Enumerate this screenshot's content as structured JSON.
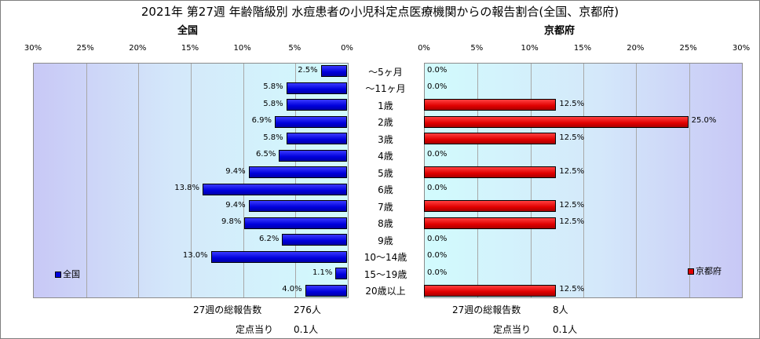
{
  "title": "2021年 第27週 年齢階級別 水痘患者の小児科定点医療機関からの報告割合(全国、京都府)",
  "categories": [
    "～5ヶ月",
    "～11ヶ月",
    "1歳",
    "2歳",
    "3歳",
    "4歳",
    "5歳",
    "6歳",
    "7歳",
    "8歳",
    "9歳",
    "10～14歳",
    "15～19歳",
    "20歳以上"
  ],
  "colors": {
    "national": "#0000dc",
    "kyoto": "#e00000"
  },
  "chart_data": [
    {
      "type": "bar",
      "orientation": "horizontal",
      "direction": "right-to-left",
      "title": "全国",
      "categories": [
        "～5ヶ月",
        "～11ヶ月",
        "1歳",
        "2歳",
        "3歳",
        "4歳",
        "5歳",
        "6歳",
        "7歳",
        "8歳",
        "9歳",
        "10～14歳",
        "15～19歳",
        "20歳以上"
      ],
      "series": [
        {
          "name": "全国",
          "values": [
            2.5,
            5.8,
            5.8,
            6.9,
            5.8,
            6.5,
            9.4,
            13.8,
            9.4,
            9.8,
            6.2,
            13.0,
            1.1,
            4.0
          ]
        }
      ],
      "value_labels": [
        "2.5%",
        "5.8%",
        "5.8%",
        "6.9%",
        "5.8%",
        "6.5%",
        "9.4%",
        "13.8%",
        "9.4%",
        "9.8%",
        "6.2%",
        "13.0%",
        "1.1%",
        "4.0%"
      ],
      "xlim": [
        0,
        30
      ],
      "ticks": [
        "30%",
        "25%",
        "20%",
        "15%",
        "10%",
        "5%",
        "0%"
      ],
      "tick_values": [
        30,
        25,
        20,
        15,
        10,
        5,
        0
      ],
      "grid": true,
      "legend_position": "bottom-left"
    },
    {
      "type": "bar",
      "orientation": "horizontal",
      "direction": "left-to-right",
      "title": "京都府",
      "categories": [
        "～5ヶ月",
        "～11ヶ月",
        "1歳",
        "2歳",
        "3歳",
        "4歳",
        "5歳",
        "6歳",
        "7歳",
        "8歳",
        "9歳",
        "10～14歳",
        "15～19歳",
        "20歳以上"
      ],
      "series": [
        {
          "name": "京都府",
          "values": [
            0.0,
            0.0,
            12.5,
            25.0,
            12.5,
            0.0,
            12.5,
            0.0,
            12.5,
            12.5,
            0.0,
            0.0,
            0.0,
            12.5
          ]
        }
      ],
      "value_labels": [
        "0.0%",
        "0.0%",
        "12.5%",
        "25.0%",
        "12.5%",
        "0.0%",
        "12.5%",
        "0.0%",
        "12.5%",
        "12.5%",
        "0.0%",
        "0.0%",
        "0.0%",
        "12.5%"
      ],
      "xlim": [
        0,
        30
      ],
      "ticks": [
        "0%",
        "5%",
        "10%",
        "15%",
        "20%",
        "25%",
        "30%"
      ],
      "tick_values": [
        0,
        5,
        10,
        15,
        20,
        25,
        30
      ],
      "grid": true,
      "legend_position": "bottom-right"
    }
  ],
  "footer": {
    "national_total_label": "27週の総報告数",
    "national_total_value": "276人",
    "national_per_label": "定点当り",
    "national_per_value": "0.1人",
    "kyoto_total_label": "27週の総報告数",
    "kyoto_total_value": "8人",
    "kyoto_per_label": "定点当り",
    "kyoto_per_value": "0.1人"
  }
}
